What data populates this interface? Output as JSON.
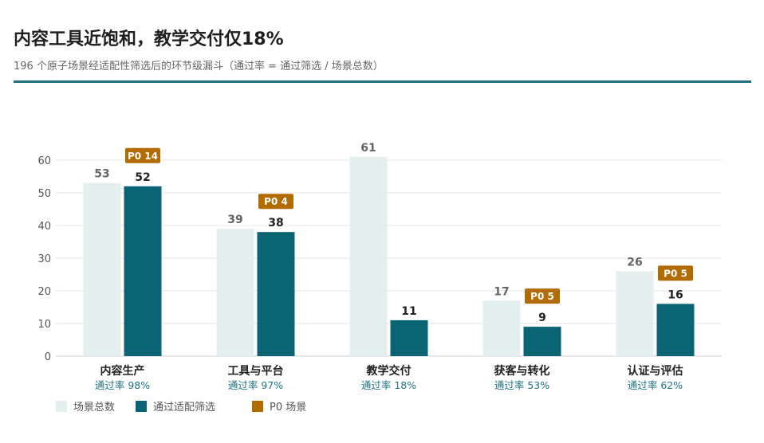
{
  "title": "内容工具近饱和，教学交付仅18%",
  "subtitle": "196 个原子场景经适配性筛选后的环节级漏斗（通过率 = 通过筛选 / 场景总数）",
  "colors": {
    "total": "#e3eeee",
    "passed": "#0b6473",
    "p0": "#b26b00",
    "rate_text": "#1f7480",
    "divider": "#1f6f7e",
    "grid": "#e6e6e6"
  },
  "legend": {
    "total": "场景总数",
    "passed": "通过适配筛选",
    "p0": "P0 场景"
  },
  "chart_data": {
    "type": "bar",
    "categories": [
      "内容生产",
      "工具与平台",
      "教学交付",
      "获客与转化",
      "认证与评估"
    ],
    "series": [
      {
        "name": "场景总数",
        "values": [
          53,
          39,
          61,
          17,
          26
        ]
      },
      {
        "name": "通过适配筛选",
        "values": [
          52,
          38,
          11,
          9,
          16
        ]
      }
    ],
    "p0_labels": [
      "P0 14",
      "P0 4",
      null,
      "P0 5",
      "P0 5"
    ],
    "pass_rates": [
      "通过率 98%",
      "通过率 97%",
      "通过率 18%",
      "通过率 53%",
      "通过率 62%"
    ],
    "ylim": [
      0,
      60
    ],
    "yticks": [
      0,
      10,
      20,
      30,
      40,
      50,
      60
    ],
    "grid": true,
    "legend_position": "bottom-left"
  }
}
